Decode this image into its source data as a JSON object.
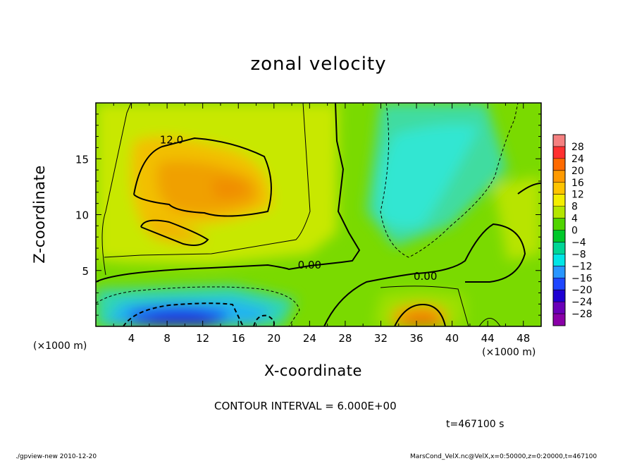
{
  "chart_data": {
    "type": "heatmap",
    "title": "zonal velocity",
    "xlabel": "X-coordinate",
    "ylabel": "Z-coordinate",
    "x_unit": "(×1000 m)",
    "xlim": [
      0,
      50
    ],
    "ylim": [
      0,
      20
    ],
    "x_ticks": [
      4,
      8,
      12,
      16,
      20,
      24,
      28,
      32,
      36,
      40,
      44,
      48
    ],
    "y_ticks": [
      5,
      10,
      15
    ],
    "contour_labels": [
      {
        "text": "12.0",
        "x": 8.5,
        "y": 16.5
      },
      {
        "text": "0.00",
        "x": 24.0,
        "y": 5.3
      },
      {
        "text": "0.00",
        "x": 37.0,
        "y": 4.3
      }
    ],
    "colorbar": {
      "levels": [
        "28",
        "24",
        "20",
        "16",
        "12",
        "8",
        "4",
        "0",
        "−4",
        "−8",
        "−12",
        "−16",
        "−20",
        "−24",
        "−28"
      ],
      "colors": [
        "#f58080",
        "#ff3030",
        "#ff6a00",
        "#ff9a00",
        "#ffc400",
        "#f4ee00",
        "#b4e600",
        "#4fd400",
        "#00c82a",
        "#00d696",
        "#00e6e6",
        "#2896ff",
        "#1e46ff",
        "#1e00d2",
        "#6a00b8",
        "#8a00a8"
      ]
    },
    "contour_interval": "CONTOUR INTERVAL = 6.000E+00",
    "time": "t=467100 s"
  },
  "footer": {
    "left": "./gpview-new  2010-12-20",
    "right": "MarsCond_VelX.nc@VelX,x=0:50000,z=0:20000,t=467100"
  }
}
